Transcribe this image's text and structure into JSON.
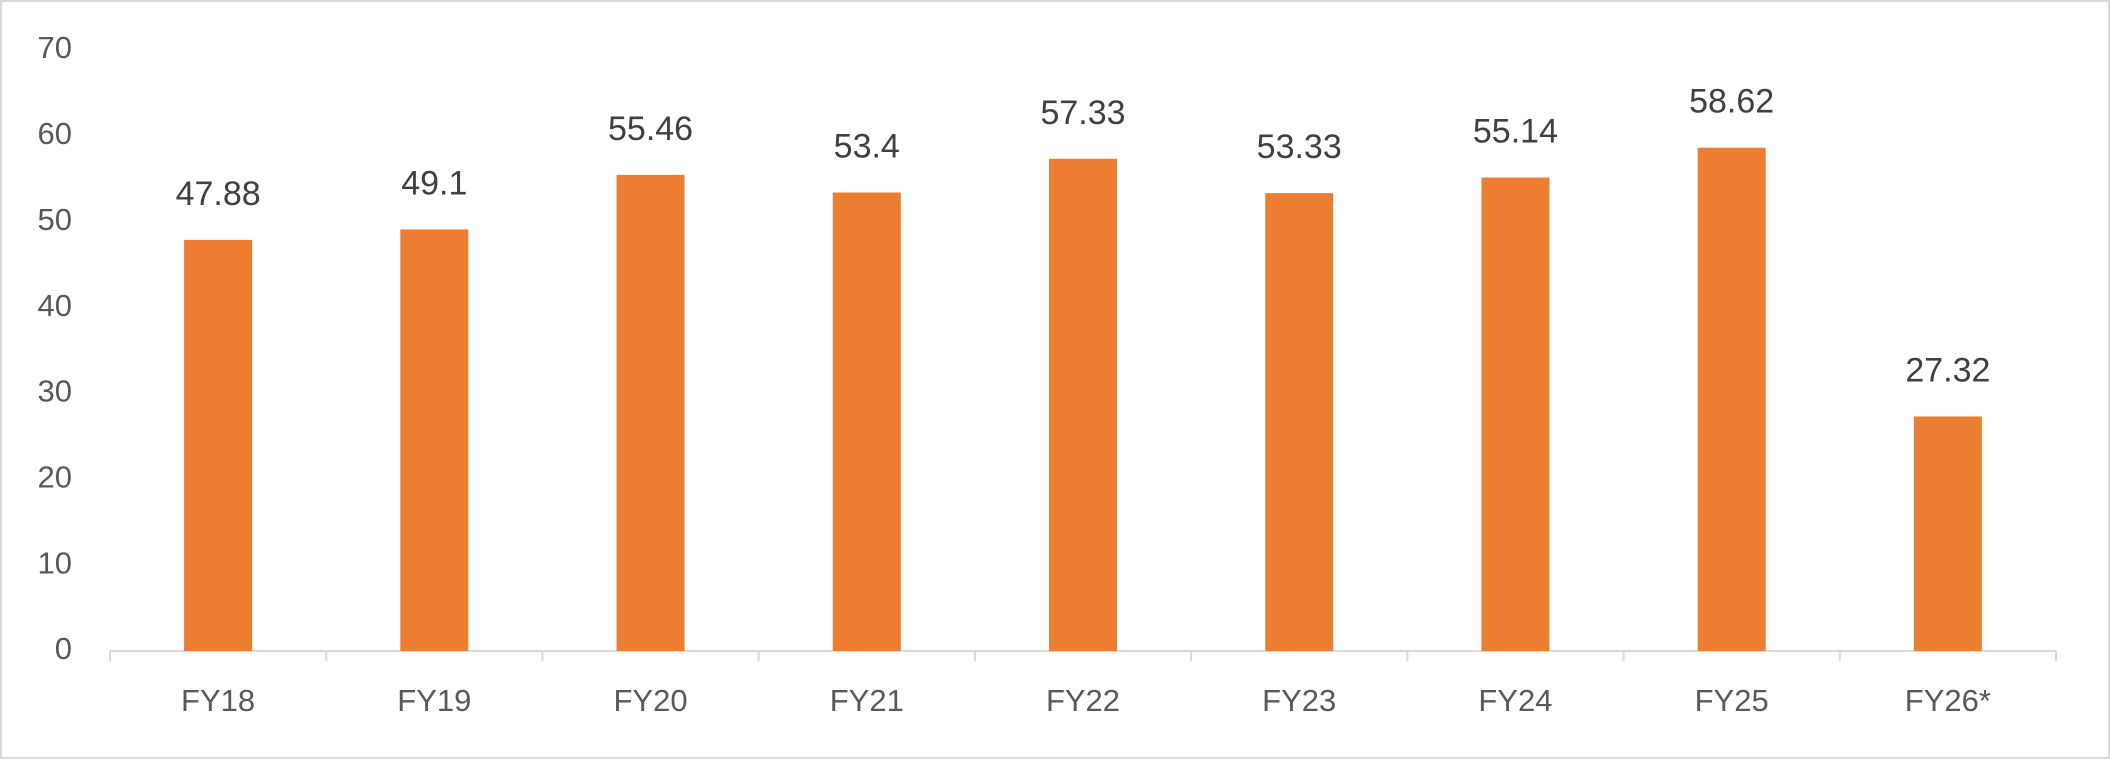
{
  "chart_data": {
    "type": "bar",
    "categories": [
      "FY18",
      "FY19",
      "FY20",
      "FY21",
      "FY22",
      "FY23",
      "FY24",
      "FY25",
      "FY26*"
    ],
    "values": [
      47.88,
      49.1,
      55.46,
      53.4,
      57.33,
      53.33,
      55.14,
      58.62,
      27.32
    ],
    "color": "#ed7d31",
    "ylim": [
      0,
      70
    ],
    "yticks": [
      0,
      10,
      20,
      30,
      40,
      50,
      60,
      70
    ],
    "grid": false
  }
}
